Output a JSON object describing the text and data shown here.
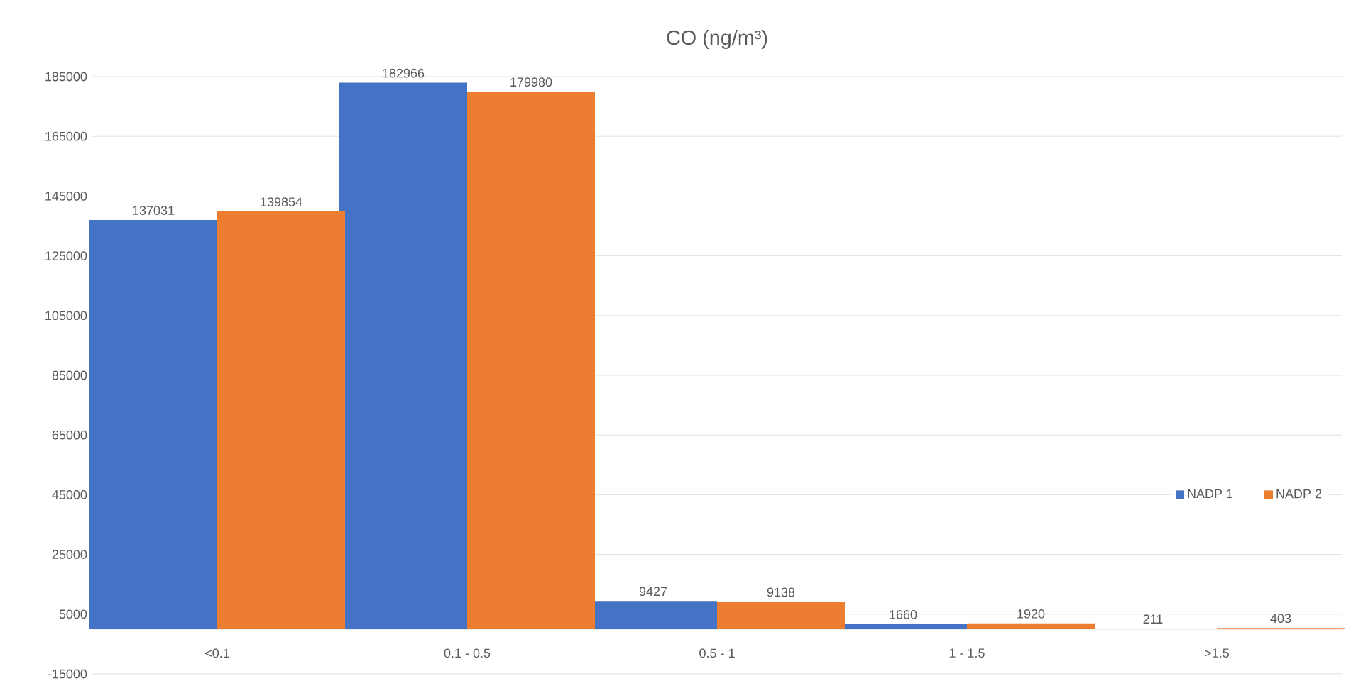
{
  "chart_data": {
    "type": "bar",
    "title": "CO (ng/m³)",
    "categories": [
      "<0.1",
      "0.1 - 0.5",
      "0.5 - 1",
      "1 - 1.5",
      ">1.5"
    ],
    "series": [
      {
        "name": "NADP 1",
        "color": "#4472c4",
        "values": [
          137031,
          182966,
          9427,
          1660,
          211
        ]
      },
      {
        "name": "NADP 2",
        "color": "#ed7d31",
        "values": [
          139854,
          179980,
          9138,
          1920,
          403
        ]
      }
    ],
    "ylim": [
      -15000,
      185000
    ],
    "yticks": [
      -15000,
      5000,
      25000,
      45000,
      65000,
      85000,
      105000,
      125000,
      145000,
      165000,
      185000
    ],
    "grid": "y",
    "legend": "right",
    "data_labels": true
  }
}
